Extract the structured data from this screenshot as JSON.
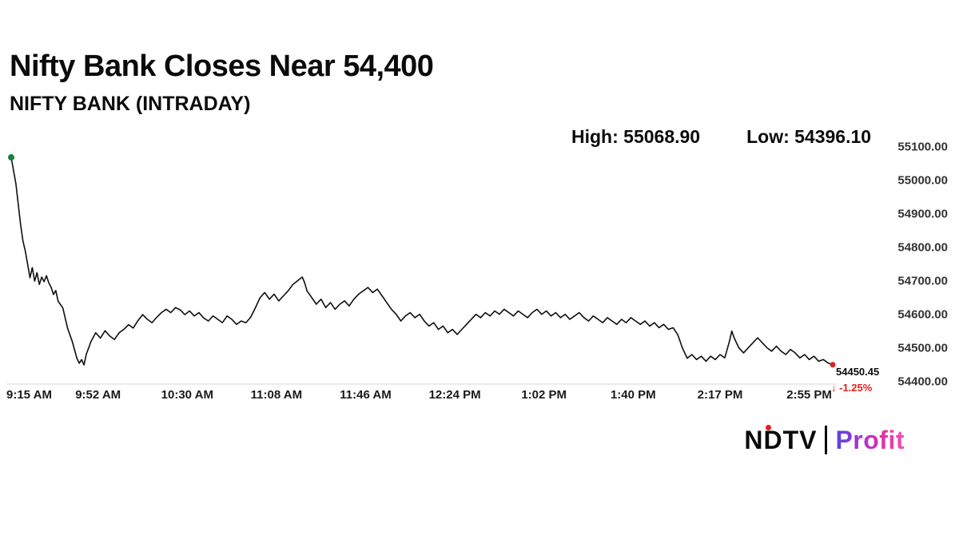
{
  "header": {
    "title": "Nifty Bank Closes Near 54,400",
    "subtitle": "NIFTY BANK (INTRADAY)",
    "high_label": "High: 55068.90",
    "low_label": "Low: 54396.10"
  },
  "chart_data": {
    "type": "line",
    "title": "NIFTY BANK (INTRADAY)",
    "high": 55068.9,
    "low": 54396.1,
    "close": 54450.45,
    "last_price_label": "54450.45",
    "change_label": "↓ -1.25%",
    "change_color": "#e02020",
    "line_color": "#0f0f0f",
    "start_marker_color": "#15803d",
    "end_marker_color": "#e02020",
    "ylim": [
      54400,
      55100
    ],
    "xlim_minutes": [
      0,
      350
    ],
    "grid": false,
    "legend": false,
    "y_ticks": [
      55100,
      55000,
      54900,
      54800,
      54700,
      54600,
      54500,
      54400
    ],
    "y_tick_labels": [
      "55100.00",
      "55000.00",
      "54900.00",
      "54800.00",
      "54700.00",
      "54600.00",
      "54500.00",
      "54400.00"
    ],
    "x_tick_minutes": [
      0,
      37,
      75,
      113,
      151,
      189,
      227,
      265,
      302,
      340
    ],
    "x_tick_labels": [
      "9:15 AM",
      "9:52 AM",
      "10:30 AM",
      "11:08 AM",
      "11:46 AM",
      "12:24 PM",
      "1:02 PM",
      "1:40 PM",
      "2:17 PM",
      "2:55 PM"
    ],
    "series": [
      {
        "name": "NIFTY BANK",
        "points": [
          [
            0,
            55068.9
          ],
          [
            1,
            55030
          ],
          [
            2,
            54990
          ],
          [
            3,
            54930
          ],
          [
            4,
            54870
          ],
          [
            5,
            54820
          ],
          [
            6,
            54790
          ],
          [
            7,
            54750
          ],
          [
            8,
            54710
          ],
          [
            9,
            54740
          ],
          [
            10,
            54700
          ],
          [
            11,
            54725
          ],
          [
            12,
            54690
          ],
          [
            13,
            54712
          ],
          [
            14,
            54698
          ],
          [
            15,
            54716
          ],
          [
            16,
            54695
          ],
          [
            17,
            54682
          ],
          [
            18,
            54660
          ],
          [
            19,
            54672
          ],
          [
            20,
            54640
          ],
          [
            22,
            54620
          ],
          [
            24,
            54560
          ],
          [
            26,
            54520
          ],
          [
            28,
            54470
          ],
          [
            29,
            54455
          ],
          [
            30,
            54466
          ],
          [
            31,
            54450
          ],
          [
            32,
            54482
          ],
          [
            34,
            54520
          ],
          [
            36,
            54546
          ],
          [
            38,
            54530
          ],
          [
            40,
            54552
          ],
          [
            42,
            54536
          ],
          [
            44,
            54526
          ],
          [
            46,
            54546
          ],
          [
            48,
            54556
          ],
          [
            50,
            54570
          ],
          [
            52,
            54560
          ],
          [
            54,
            54582
          ],
          [
            56,
            54600
          ],
          [
            58,
            54586
          ],
          [
            60,
            54576
          ],
          [
            62,
            54592
          ],
          [
            64,
            54606
          ],
          [
            66,
            54616
          ],
          [
            68,
            54606
          ],
          [
            70,
            54621
          ],
          [
            72,
            54614
          ],
          [
            74,
            54600
          ],
          [
            76,
            54611
          ],
          [
            78,
            54596
          ],
          [
            80,
            54606
          ],
          [
            82,
            54590
          ],
          [
            84,
            54581
          ],
          [
            86,
            54596
          ],
          [
            88,
            54586
          ],
          [
            90,
            54576
          ],
          [
            92,
            54596
          ],
          [
            94,
            54586
          ],
          [
            96,
            54571
          ],
          [
            98,
            54581
          ],
          [
            100,
            54576
          ],
          [
            102,
            54592
          ],
          [
            104,
            54620
          ],
          [
            106,
            54650
          ],
          [
            108,
            54666
          ],
          [
            110,
            54646
          ],
          [
            112,
            54661
          ],
          [
            114,
            54641
          ],
          [
            116,
            54656
          ],
          [
            118,
            54671
          ],
          [
            120,
            54690
          ],
          [
            122,
            54701
          ],
          [
            124,
            54712
          ],
          [
            125,
            54696
          ],
          [
            126,
            54671
          ],
          [
            128,
            54651
          ],
          [
            130,
            54631
          ],
          [
            132,
            54646
          ],
          [
            134,
            54621
          ],
          [
            136,
            54636
          ],
          [
            138,
            54616
          ],
          [
            140,
            54631
          ],
          [
            142,
            54641
          ],
          [
            144,
            54626
          ],
          [
            146,
            54646
          ],
          [
            148,
            54661
          ],
          [
            150,
            54671
          ],
          [
            152,
            54681
          ],
          [
            154,
            54666
          ],
          [
            156,
            54676
          ],
          [
            158,
            54656
          ],
          [
            160,
            54636
          ],
          [
            162,
            54616
          ],
          [
            164,
            54601
          ],
          [
            166,
            54581
          ],
          [
            168,
            54596
          ],
          [
            170,
            54606
          ],
          [
            172,
            54591
          ],
          [
            174,
            54601
          ],
          [
            176,
            54581
          ],
          [
            178,
            54566
          ],
          [
            180,
            54576
          ],
          [
            182,
            54556
          ],
          [
            184,
            54566
          ],
          [
            186,
            54546
          ],
          [
            188,
            54556
          ],
          [
            190,
            54541
          ],
          [
            192,
            54556
          ],
          [
            194,
            54571
          ],
          [
            196,
            54586
          ],
          [
            198,
            54601
          ],
          [
            200,
            54591
          ],
          [
            202,
            54606
          ],
          [
            204,
            54596
          ],
          [
            206,
            54611
          ],
          [
            208,
            54601
          ],
          [
            210,
            54616
          ],
          [
            212,
            54606
          ],
          [
            214,
            54596
          ],
          [
            216,
            54611
          ],
          [
            218,
            54601
          ],
          [
            220,
            54591
          ],
          [
            222,
            54606
          ],
          [
            224,
            54616
          ],
          [
            226,
            54601
          ],
          [
            228,
            54611
          ],
          [
            230,
            54596
          ],
          [
            232,
            54606
          ],
          [
            234,
            54591
          ],
          [
            236,
            54601
          ],
          [
            238,
            54586
          ],
          [
            240,
            54596
          ],
          [
            242,
            54606
          ],
          [
            244,
            54591
          ],
          [
            246,
            54581
          ],
          [
            248,
            54596
          ],
          [
            250,
            54586
          ],
          [
            252,
            54576
          ],
          [
            254,
            54591
          ],
          [
            256,
            54581
          ],
          [
            258,
            54571
          ],
          [
            260,
            54586
          ],
          [
            262,
            54576
          ],
          [
            264,
            54591
          ],
          [
            266,
            54581
          ],
          [
            268,
            54571
          ],
          [
            270,
            54581
          ],
          [
            272,
            54566
          ],
          [
            274,
            54576
          ],
          [
            276,
            54561
          ],
          [
            278,
            54571
          ],
          [
            280,
            54556
          ],
          [
            282,
            54561
          ],
          [
            284,
            54540
          ],
          [
            286,
            54500
          ],
          [
            288,
            54470
          ],
          [
            290,
            54481
          ],
          [
            292,
            54466
          ],
          [
            294,
            54476
          ],
          [
            296,
            54461
          ],
          [
            298,
            54476
          ],
          [
            300,
            54466
          ],
          [
            302,
            54481
          ],
          [
            304,
            54471
          ],
          [
            306,
            54521
          ],
          [
            307,
            54551
          ],
          [
            308,
            54531
          ],
          [
            310,
            54501
          ],
          [
            312,
            54486
          ],
          [
            314,
            54501
          ],
          [
            316,
            54516
          ],
          [
            318,
            54531
          ],
          [
            320,
            54516
          ],
          [
            322,
            54501
          ],
          [
            324,
            54491
          ],
          [
            326,
            54506
          ],
          [
            328,
            54491
          ],
          [
            330,
            54481
          ],
          [
            332,
            54496
          ],
          [
            334,
            54486
          ],
          [
            336,
            54471
          ],
          [
            338,
            54481
          ],
          [
            340,
            54466
          ],
          [
            342,
            54476
          ],
          [
            344,
            54461
          ],
          [
            346,
            54466
          ],
          [
            348,
            54456
          ],
          [
            350,
            54450.45
          ]
        ]
      }
    ]
  },
  "footer": {
    "logo_ndtv": "NDTV",
    "logo_separator": "|",
    "logo_profit": "Profit"
  }
}
